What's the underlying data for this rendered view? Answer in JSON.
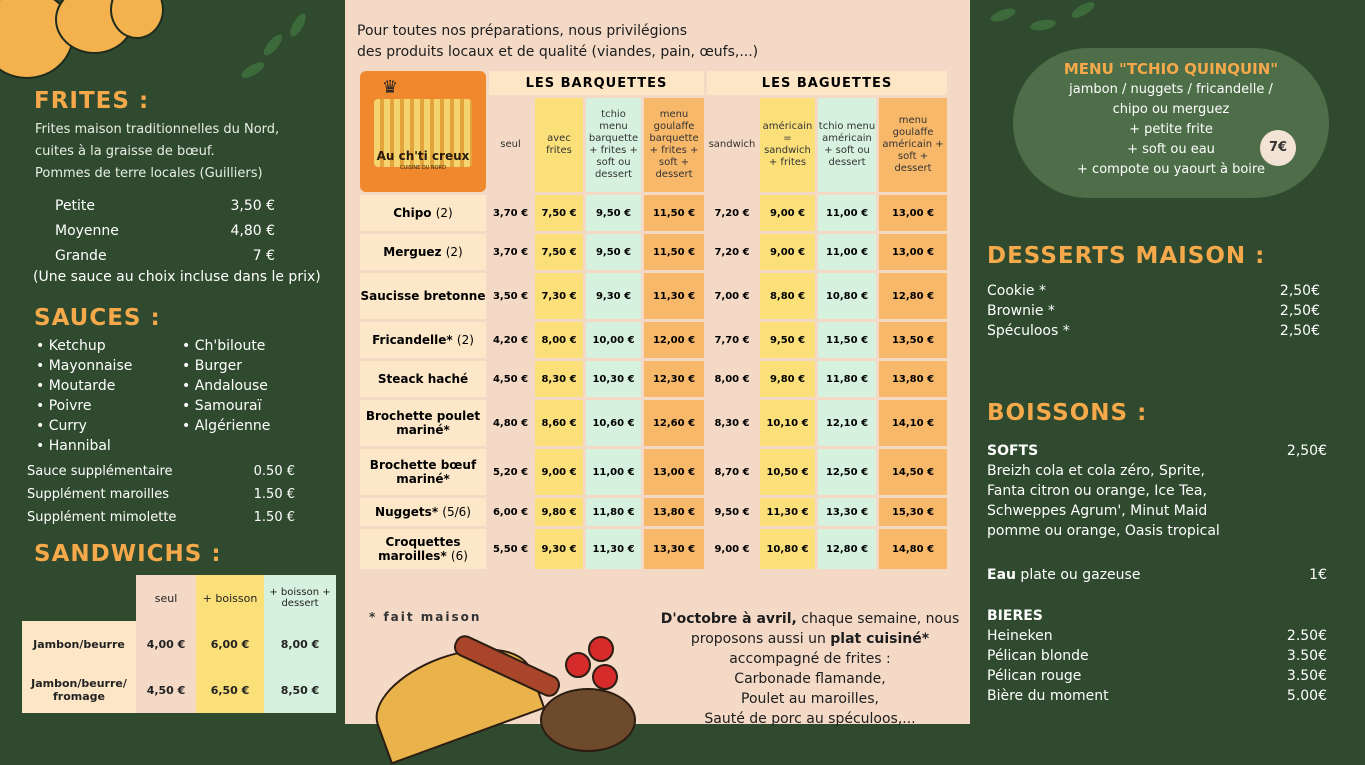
{
  "left": {
    "frites": {
      "title": "FRITES :",
      "desc": [
        "Frites maison traditionnelles du Nord,",
        "cuites à la graisse de bœuf.",
        "Pommes de terre locales (Guilliers)"
      ],
      "sizes": [
        {
          "label": "Petite",
          "price": "3,50 €"
        },
        {
          "label": "Moyenne",
          "price": "4,80 €"
        },
        {
          "label": "Grande",
          "price": "7 €"
        }
      ],
      "note": "(Une sauce au choix incluse dans le prix)"
    },
    "sauces": {
      "title": "SAUCES :",
      "col1": [
        "Ketchup",
        "Mayonnaise",
        "Moutarde",
        "Poivre",
        "Curry",
        "Hannibal"
      ],
      "col2": [
        "Ch'biloute",
        "Burger",
        "Andalouse",
        "Samouraï",
        "Algérienne"
      ],
      "extras": [
        {
          "label": "Sauce supplémentaire",
          "price": "0.50 €"
        },
        {
          "label": "Supplément maroilles",
          "price": "1.50 €"
        },
        {
          "label": "Supplément mimolette",
          "price": "1.50 €"
        }
      ]
    },
    "sandwichs": {
      "title": "SANDWICHS :",
      "headers": [
        "seul",
        "+ boisson",
        "+ boisson + dessert"
      ],
      "rows": [
        {
          "name": "Jambon/beurre",
          "prices": [
            "4,00 €",
            "6,00 €",
            "8,00 €"
          ]
        },
        {
          "name": "Jambon/beurre/ fromage",
          "prices": [
            "4,50 €",
            "6,50 €",
            "8,50 €"
          ]
        }
      ]
    }
  },
  "middle": {
    "intro": [
      "Pour toutes nos préparations, nous privilégions",
      "des produits locaux et de qualité (viandes, pain, œufs,...)"
    ],
    "logo": {
      "name": "Au ch'ti creux",
      "tagline": "CUISINE DU NORD"
    },
    "groups": [
      "LES BARQUETTES",
      "LES BAGUETTES"
    ],
    "headers": [
      "seul",
      "avec frites",
      "tchio menu barquette + frites + soft ou dessert",
      "menu goulaffe barquette + frites + soft + dessert",
      "sandwich",
      "américain = sandwich + frites",
      "tchio menu américain + soft ou dessert",
      "menu goulaffe américain + soft + dessert"
    ],
    "rows": [
      {
        "name": "Chipo",
        "extra": "(2)",
        "prices": [
          "3,70 €",
          "7,50 €",
          "9,50 €",
          "11,50 €",
          "7,20 €",
          "9,00 €",
          "11,00 €",
          "13,00 €"
        ]
      },
      {
        "name": "Merguez",
        "extra": "(2)",
        "prices": [
          "3,70 €",
          "7,50 €",
          "9,50 €",
          "11,50 €",
          "7,20 €",
          "9,00 €",
          "11,00 €",
          "13,00 €"
        ]
      },
      {
        "name": "Saucisse bretonne",
        "extra": "",
        "prices": [
          "3,50 €",
          "7,30 €",
          "9,30 €",
          "11,30 €",
          "7,00 €",
          "8,80 €",
          "10,80 €",
          "12,80 €"
        ]
      },
      {
        "name": "Fricandelle*",
        "extra": "(2)",
        "prices": [
          "4,20 €",
          "8,00 €",
          "10,00 €",
          "12,00 €",
          "7,70 €",
          "9,50 €",
          "11,50 €",
          "13,50 €"
        ]
      },
      {
        "name": "Steack haché",
        "extra": "",
        "prices": [
          "4,50 €",
          "8,30 €",
          "10,30 €",
          "12,30 €",
          "8,00 €",
          "9,80 €",
          "11,80 €",
          "13,80 €"
        ]
      },
      {
        "name": "Brochette poulet mariné*",
        "extra": "",
        "prices": [
          "4,80 €",
          "8,60 €",
          "10,60 €",
          "12,60 €",
          "8,30 €",
          "10,10 €",
          "12,10 €",
          "14,10 €"
        ]
      },
      {
        "name": "Brochette bœuf mariné*",
        "extra": "",
        "prices": [
          "5,20 €",
          "9,00 €",
          "11,00 €",
          "13,00 €",
          "8,70 €",
          "10,50 €",
          "12,50 €",
          "14,50 €"
        ]
      },
      {
        "name": "Nuggets*",
        "extra": "(5/6)",
        "prices": [
          "6,00 €",
          "9,80 €",
          "11,80 €",
          "13,80 €",
          "9,50 €",
          "11,30 €",
          "13,30 €",
          "15,30 €"
        ]
      },
      {
        "name": "Croquettes maroilles*",
        "extra": "(6)",
        "prices": [
          "5,50 €",
          "9,30 €",
          "11,30 €",
          "13,30 €",
          "9,00 €",
          "10,80 €",
          "12,80 €",
          "14,80 €"
        ]
      }
    ],
    "footnote": "* fait maison",
    "plat": {
      "lead_bold": "D'octobre à avril,",
      "lead": " chaque semaine, nous",
      "line2_a": "proposons aussi un ",
      "line2_b": "plat cuisiné*",
      "lines": [
        "accompagné de frites :",
        "Carbonade flamande,",
        "Poulet au maroilles,",
        "Sauté de porc au spéculoos,..."
      ]
    }
  },
  "right": {
    "menu": {
      "title": "MENU \"TCHIO QUINQUIN\"",
      "lines": [
        "jambon / nuggets / fricandelle /",
        "chipo ou merguez",
        "+ petite frite",
        "+ soft ou eau",
        "+ compote ou yaourt à boire"
      ],
      "price": "7€"
    },
    "desserts": {
      "title": "DESSERTS MAISON :",
      "items": [
        {
          "label": "Cookie *",
          "price": "2,50€"
        },
        {
          "label": "Brownie *",
          "price": "2,50€"
        },
        {
          "label": "Spéculoos *",
          "price": "2,50€"
        }
      ]
    },
    "boissons": {
      "title": "BOISSONS :",
      "softs_label": "SOFTS",
      "softs_price": "2,50€",
      "softs_lines": [
        "Breizh cola et cola zéro, Sprite,",
        "Fanta citron ou orange, Ice Tea,",
        "Schweppes Agrum', Minut Maid",
        "pomme ou orange, Oasis tropical"
      ],
      "eau_label": "Eau",
      "eau_desc": " plate ou gazeuse",
      "eau_price": "1€",
      "bieres_label": "BIERES",
      "bieres": [
        {
          "label": "Heineken",
          "price": "2.50€"
        },
        {
          "label": "Pélican blonde",
          "price": "3.50€"
        },
        {
          "label": "Pélican rouge",
          "price": "3.50€"
        },
        {
          "label": "Bière du moment",
          "price": "5.00€"
        }
      ]
    }
  }
}
